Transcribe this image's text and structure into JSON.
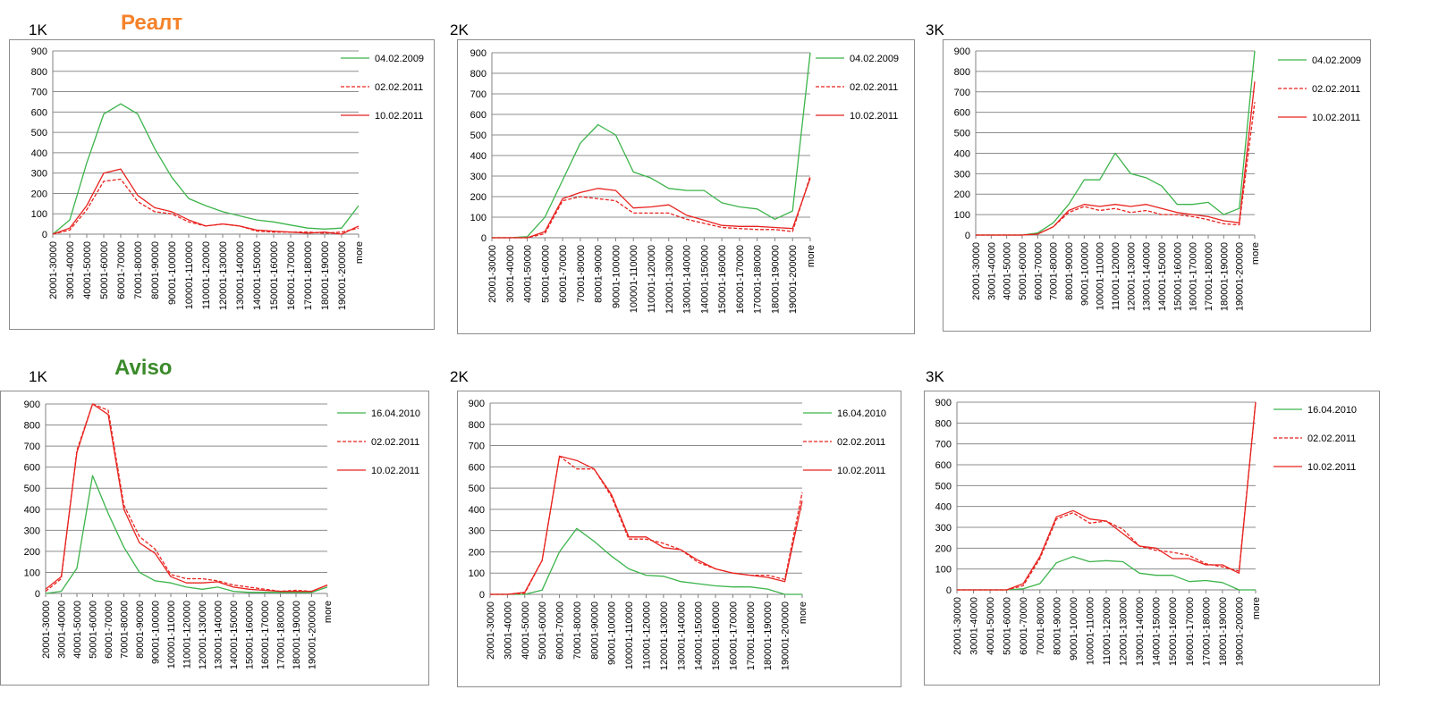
{
  "groups": [
    {
      "title": "Реалт",
      "color": "#f5822a"
    },
    {
      "title": "Aviso",
      "color": "#3a8a2a"
    }
  ],
  "colors": {
    "series_1": "#3cb44b",
    "series_2": "#e8231f",
    "series_3": "#e8231f"
  },
  "chart_data": [
    {
      "type": "line",
      "panel": "1K",
      "group": "Реалт",
      "categories": [
        "20001-30000",
        "30001-40000",
        "40001-50000",
        "50001-60000",
        "60001-70000",
        "70001-80000",
        "80001-90000",
        "90001-100000",
        "100001-110000",
        "110001-120000",
        "120001-130000",
        "130001-140000",
        "140001-150000",
        "150001-160000",
        "160001-170000",
        "170001-180000",
        "180001-190000",
        "190001-200000",
        "more"
      ],
      "ylim": [
        0,
        900
      ],
      "yticks": [
        0,
        100,
        200,
        300,
        400,
        500,
        600,
        700,
        800,
        900
      ],
      "legend_position": "right",
      "series": [
        {
          "name": "04.02.2009",
          "style": "solid",
          "color": "#3cb44b",
          "values": [
            0,
            70,
            350,
            590,
            640,
            590,
            420,
            280,
            175,
            140,
            110,
            90,
            70,
            60,
            45,
            30,
            25,
            30,
            140
          ]
        },
        {
          "name": "02.02.2011",
          "style": "dashed",
          "color": "#e8231f",
          "values": [
            0,
            20,
            120,
            260,
            270,
            160,
            110,
            100,
            60,
            40,
            50,
            40,
            15,
            10,
            10,
            10,
            5,
            10,
            30
          ]
        },
        {
          "name": "10.02.2011",
          "style": "solid",
          "color": "#e8231f",
          "values": [
            0,
            30,
            140,
            300,
            320,
            190,
            130,
            110,
            70,
            40,
            50,
            40,
            20,
            15,
            10,
            5,
            10,
            0,
            40
          ]
        }
      ]
    },
    {
      "type": "line",
      "panel": "2K",
      "group": "Реалт",
      "categories": [
        "20001-30000",
        "30001-40000",
        "40001-50000",
        "50001-60000",
        "60001-70000",
        "70001-80000",
        "80001-90000",
        "90001-100000",
        "100001-110000",
        "110001-120000",
        "120001-130000",
        "130001-140000",
        "140001-150000",
        "150001-160000",
        "160001-170000",
        "170001-180000",
        "180001-190000",
        "190001-200000",
        "more"
      ],
      "ylim": [
        0,
        900
      ],
      "yticks": [
        0,
        100,
        200,
        300,
        400,
        500,
        600,
        700,
        800,
        900
      ],
      "legend_position": "right",
      "series": [
        {
          "name": "04.02.2009",
          "style": "solid",
          "color": "#3cb44b",
          "values": [
            0,
            0,
            5,
            100,
            280,
            460,
            550,
            500,
            320,
            290,
            240,
            230,
            230,
            170,
            150,
            140,
            90,
            130,
            900
          ]
        },
        {
          "name": "02.02.2011",
          "style": "dashed",
          "color": "#e8231f",
          "values": [
            0,
            0,
            0,
            20,
            180,
            200,
            190,
            180,
            120,
            120,
            120,
            90,
            70,
            50,
            45,
            40,
            40,
            30,
            300
          ]
        },
        {
          "name": "10.02.2011",
          "style": "solid",
          "color": "#e8231f",
          "values": [
            0,
            0,
            0,
            30,
            190,
            220,
            240,
            230,
            145,
            150,
            160,
            110,
            85,
            60,
            55,
            55,
            50,
            45,
            290
          ]
        }
      ]
    },
    {
      "type": "line",
      "panel": "3K",
      "group": "Реалт",
      "categories": [
        "20001-30000",
        "30001-40000",
        "40001-50000",
        "50001-60000",
        "60001-70000",
        "70001-80000",
        "80001-90000",
        "90001-100000",
        "100001-110000",
        "110001-120000",
        "120001-130000",
        "130001-140000",
        "140001-150000",
        "150001-160000",
        "160001-170000",
        "170001-180000",
        "180001-190000",
        "190001-200000",
        "more"
      ],
      "ylim": [
        0,
        900
      ],
      "yticks": [
        0,
        100,
        200,
        300,
        400,
        500,
        600,
        700,
        800,
        900
      ],
      "legend_position": "right",
      "series": [
        {
          "name": "04.02.2009",
          "style": "solid",
          "color": "#3cb44b",
          "values": [
            0,
            0,
            0,
            0,
            10,
            60,
            150,
            270,
            270,
            400,
            300,
            280,
            240,
            150,
            150,
            160,
            100,
            130,
            900
          ]
        },
        {
          "name": "02.02.2011",
          "style": "dashed",
          "color": "#e8231f",
          "values": [
            0,
            0,
            0,
            0,
            5,
            40,
            110,
            140,
            120,
            130,
            110,
            120,
            100,
            100,
            90,
            75,
            55,
            50,
            650
          ]
        },
        {
          "name": "10.02.2011",
          "style": "solid",
          "color": "#e8231f",
          "values": [
            0,
            0,
            0,
            0,
            5,
            40,
            120,
            150,
            140,
            150,
            140,
            150,
            130,
            110,
            100,
            90,
            70,
            60,
            750
          ]
        }
      ]
    },
    {
      "type": "line",
      "panel": "1K",
      "group": "Aviso",
      "categories": [
        "20001-30000",
        "30001-40000",
        "40001-50000",
        "50001-60000",
        "60001-70000",
        "70001-80000",
        "80001-90000",
        "90001-100000",
        "100001-110000",
        "110001-120000",
        "120001-130000",
        "130001-140000",
        "140001-150000",
        "150001-160000",
        "160001-170000",
        "170001-180000",
        "180001-190000",
        "190001-200000",
        "more"
      ],
      "ylim": [
        0,
        900
      ],
      "yticks": [
        0,
        100,
        200,
        300,
        400,
        500,
        600,
        700,
        800,
        900
      ],
      "legend_position": "right",
      "series": [
        {
          "name": "16.04.2010",
          "style": "solid",
          "color": "#3cb44b",
          "values": [
            0,
            10,
            120,
            560,
            380,
            220,
            100,
            60,
            50,
            30,
            20,
            30,
            10,
            5,
            5,
            5,
            5,
            5,
            30
          ]
        },
        {
          "name": "02.02.2011",
          "style": "dashed",
          "color": "#e8231f",
          "values": [
            10,
            70,
            680,
            920,
            870,
            420,
            270,
            210,
            90,
            70,
            70,
            60,
            40,
            30,
            20,
            10,
            15,
            10,
            40
          ]
        },
        {
          "name": "10.02.2011",
          "style": "solid",
          "color": "#e8231f",
          "values": [
            20,
            80,
            670,
            900,
            850,
            400,
            240,
            190,
            80,
            50,
            50,
            55,
            30,
            20,
            15,
            10,
            10,
            10,
            40
          ]
        }
      ]
    },
    {
      "type": "line",
      "panel": "2K",
      "group": "Aviso",
      "categories": [
        "20001-30000",
        "30001-40000",
        "40001-50000",
        "50001-60000",
        "60001-70000",
        "70001-80000",
        "80001-90000",
        "90001-100000",
        "100001-110000",
        "110001-120000",
        "120001-130000",
        "130001-140000",
        "140001-150000",
        "150001-160000",
        "160001-170000",
        "170001-180000",
        "180001-190000",
        "190001-200000",
        "more"
      ],
      "ylim": [
        0,
        900
      ],
      "yticks": [
        0,
        100,
        200,
        300,
        400,
        500,
        600,
        700,
        800,
        900
      ],
      "legend_position": "right",
      "series": [
        {
          "name": "16.04.2010",
          "style": "solid",
          "color": "#3cb44b",
          "values": [
            0,
            0,
            0,
            20,
            200,
            310,
            250,
            180,
            120,
            90,
            85,
            60,
            50,
            40,
            35,
            35,
            25,
            0,
            0
          ]
        },
        {
          "name": "02.02.2011",
          "style": "dashed",
          "color": "#e8231f",
          "values": [
            0,
            0,
            5,
            160,
            650,
            590,
            590,
            460,
            260,
            260,
            240,
            210,
            150,
            120,
            100,
            90,
            90,
            70,
            480
          ]
        },
        {
          "name": "10.02.2011",
          "style": "solid",
          "color": "#e8231f",
          "values": [
            0,
            0,
            10,
            160,
            650,
            630,
            590,
            470,
            270,
            270,
            220,
            210,
            160,
            120,
            100,
            90,
            80,
            60,
            440
          ]
        }
      ]
    },
    {
      "type": "line",
      "panel": "3K",
      "group": "Aviso",
      "categories": [
        "20001-30000",
        "30001-40000",
        "40001-50000",
        "50001-60000",
        "60001-70000",
        "70001-80000",
        "80001-90000",
        "90001-100000",
        "100001-110000",
        "110001-120000",
        "120001-130000",
        "130001-140000",
        "140001-150000",
        "150001-160000",
        "160001-170000",
        "170001-180000",
        "180001-190000",
        "190001-200000",
        "more"
      ],
      "ylim": [
        0,
        900
      ],
      "yticks": [
        0,
        100,
        200,
        300,
        400,
        500,
        600,
        700,
        800,
        900
      ],
      "legend_position": "right",
      "series": [
        {
          "name": "16.04.2010",
          "style": "solid",
          "color": "#3cb44b",
          "values": [
            0,
            0,
            0,
            0,
            5,
            30,
            130,
            160,
            135,
            140,
            135,
            80,
            70,
            70,
            40,
            45,
            35,
            0,
            0
          ]
        },
        {
          "name": "02.02.2011",
          "style": "dashed",
          "color": "#e8231f",
          "values": [
            0,
            0,
            0,
            0,
            20,
            150,
            340,
            370,
            320,
            330,
            290,
            210,
            190,
            180,
            165,
            125,
            110,
            90,
            900
          ]
        },
        {
          "name": "10.02.2011",
          "style": "solid",
          "color": "#e8231f",
          "values": [
            0,
            0,
            0,
            0,
            30,
            160,
            350,
            380,
            340,
            330,
            270,
            210,
            200,
            150,
            150,
            120,
            120,
            80,
            900
          ]
        }
      ]
    }
  ]
}
